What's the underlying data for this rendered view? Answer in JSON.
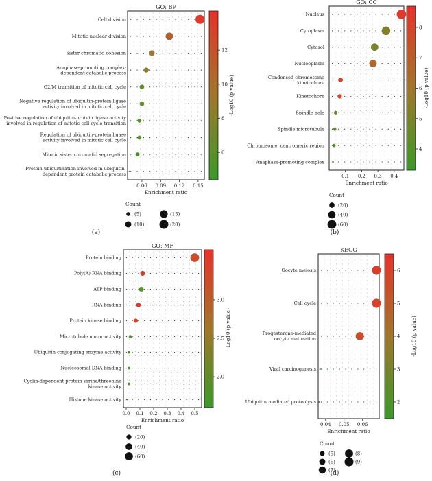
{
  "chart_data": [
    {
      "id": "a",
      "type": "scatter",
      "panel_label": "(a)",
      "title": "GO: BP",
      "xlabel": "Enrichment ratio",
      "xlim": [
        0.037,
        0.16
      ],
      "xticks": [
        0.06,
        0.09,
        0.12,
        0.15
      ],
      "xtick_labels": [
        "0.06",
        "0.09",
        "0.12",
        "0.15"
      ],
      "categories": [
        "Cell division",
        "Mitotic nuclear division",
        "Sister chromatid cohesion",
        "Anaphase-promoting complex-dependent catabolic process",
        "G2/M transition of mitotic cell cycle",
        "Negative regulation of ubiquitin-protein ligase activity involved in mitotic cell cycle",
        "Positive regulation of ubiquitin-protein ligase activity involved in regulation of mitotic cell cycle transition",
        "Regulation of ubiquitin-protein ligase activity involved in mitotic cell cycle",
        "Mitotic sister chromatid segregation",
        "Protein ubiquitination involved in ubiquitin-dependent protein catabolic process"
      ],
      "category_lines": [
        [
          "Cell division"
        ],
        [
          "Mitotic nuclear division"
        ],
        [
          "Sister chromatid cohesion"
        ],
        [
          "Anaphase-promoting complex-",
          "dependent catabolic process"
        ],
        [
          "G2/M transition of mitotic cell cycle"
        ],
        [
          "Negative regulation of ubiquitin-protein ligase",
          "activity involved in mitotic cell cycle"
        ],
        [
          "Positive regulation of ubiquitin-protein ligase activity",
          "involved in regulation of mitotic cell cycle transition"
        ],
        [
          "Regulation of ubiquitin-protein ligase",
          "activity involved in mitotic cell cycle"
        ],
        [
          "Mitotic sister chromatid segregation"
        ],
        [
          "Protein ubiquitination involved in ubiquitin-",
          "dependent protein catabolic process"
        ]
      ],
      "x": [
        0.153,
        0.104,
        0.076,
        0.067,
        0.06,
        0.06,
        0.056,
        0.056,
        0.053,
        0.04
      ],
      "count": [
        20,
        14,
        8,
        7,
        6,
        6,
        5,
        5,
        5,
        3
      ],
      "neg_log10_p": [
        13.8,
        11.0,
        9.6,
        8.7,
        6.3,
        6.2,
        5.8,
        5.9,
        5.2,
        4.8
      ],
      "colorbar": {
        "min": 4.4,
        "max": 14.3,
        "ticks": [
          6,
          8,
          10,
          12
        ],
        "tick_labels": [
          "6",
          "8",
          "10",
          "12"
        ],
        "label": "-Log10 (p value)"
      },
      "legend": {
        "title": "Count",
        "entries": [
          5,
          10,
          15,
          20
        ],
        "labels": [
          "(5)",
          "(10)",
          "(15)",
          "(20)"
        ]
      }
    },
    {
      "id": "b",
      "type": "scatter",
      "panel_label": "(b)",
      "title": "GO: CC",
      "xlabel": "Enrichment ratio",
      "xlim": [
        0.0,
        0.46
      ],
      "xticks": [
        0.1,
        0.2,
        0.3,
        0.4
      ],
      "xtick_labels": [
        "0.1",
        "0.2",
        "0.3",
        "0.4"
      ],
      "categories": [
        "Nucleus",
        "Cytoplasm",
        "Cytosol",
        "Nucleoplasm",
        "Condensed chromosome kinetochore",
        "Kinetochore",
        "Spindle pole",
        "Spindle microtubule",
        "Chromosome, centromeric region",
        "Anaphase-promoting complex"
      ],
      "category_lines": [
        [
          "Nucleus"
        ],
        [
          "Cytoplasm"
        ],
        [
          "Cytosol"
        ],
        [
          "Nucleoplasm"
        ],
        [
          "Condensed chromosome",
          "kinetochore"
        ],
        [
          "Kinetochore"
        ],
        [
          "Spindle pole"
        ],
        [
          "Spindle microtubule"
        ],
        [
          "Chromosome, centromeric region"
        ],
        [
          "Anaphase-promoting complex"
        ]
      ],
      "x": [
        0.445,
        0.35,
        0.28,
        0.27,
        0.07,
        0.065,
        0.04,
        0.035,
        0.03,
        0.025
      ],
      "count": [
        68,
        55,
        40,
        40,
        15,
        13,
        9,
        8,
        8,
        5
      ],
      "neg_log10_p": [
        8.4,
        5.2,
        5.0,
        6.6,
        8.0,
        7.8,
        4.2,
        4.0,
        3.9,
        3.5
      ],
      "colorbar": {
        "min": 3.3,
        "max": 8.7,
        "ticks": [
          4,
          5,
          6,
          7,
          8
        ],
        "tick_labels": [
          "4",
          "5",
          "6",
          "7",
          "8"
        ],
        "label": "-Log10 (p value)"
      },
      "legend": {
        "title": "Count",
        "entries": [
          20,
          40,
          60
        ],
        "labels": [
          "(20)",
          "(40)",
          "(60)"
        ]
      }
    },
    {
      "id": "c",
      "type": "scatter",
      "panel_label": "(c)",
      "title": "GO: MF",
      "xlabel": "Enrichment ratio",
      "xlim": [
        -0.02,
        0.55
      ],
      "xticks": [
        0.0,
        0.1,
        0.2,
        0.3,
        0.4,
        0.5
      ],
      "xtick_labels": [
        "0.0",
        "0.1",
        "0.2",
        "0.3",
        "0.4",
        "0.5"
      ],
      "categories": [
        "Protein binding",
        "Poly(A) RNA binding",
        "ATP binding",
        "RNA binding",
        "Protein kinase binding",
        "Microtubule motor activity",
        "Ubiquitin conjugating enzyme activity",
        "Nucleosomal DNA binding",
        "Cyclin-dependent protein serine/threonine kinase activity",
        "Histone kinase activity"
      ],
      "category_lines": [
        [
          "Protein binding"
        ],
        [
          "Poly(A) RNA binding"
        ],
        [
          "ATP binding"
        ],
        [
          "RNA binding"
        ],
        [
          "Protein kinase binding"
        ],
        [
          "Microtubule motor activity"
        ],
        [
          "Ubiquitin conjugating enzyme activity"
        ],
        [
          "Nucleosomal DNA binding"
        ],
        [
          "Cyclin-dependent protein serine/threonine",
          "kinase activity"
        ],
        [
          "Histone kinase activity"
        ]
      ],
      "x": [
        0.5,
        0.12,
        0.11,
        0.09,
        0.07,
        0.03,
        0.02,
        0.02,
        0.02,
        0.01
      ],
      "count": [
        70,
        18,
        18,
        15,
        13,
        7,
        6,
        6,
        6,
        4
      ],
      "neg_log10_p": [
        3.3,
        3.5,
        1.9,
        3.6,
        3.4,
        1.8,
        1.8,
        1.8,
        1.7,
        1.7
      ],
      "colorbar": {
        "min": 1.6,
        "max": 3.65,
        "ticks": [
          2.0,
          2.5,
          3.0
        ],
        "tick_labels": [
          "2.0",
          "2.5",
          "3.0"
        ],
        "label": "-Log10 (p value)"
      },
      "legend": {
        "title": "Count",
        "entries": [
          20,
          40,
          60
        ],
        "labels": [
          "(20)",
          "(40)",
          "(60)"
        ]
      }
    },
    {
      "id": "d",
      "type": "scatter",
      "panel_label": "(d)",
      "title": "KEGG",
      "xlabel": "Enrichment ratio",
      "xlim": [
        0.036,
        0.069
      ],
      "xticks": [
        0.04,
        0.05,
        0.06
      ],
      "xtick_labels": [
        "0.04",
        "0.05",
        "0.06"
      ],
      "categories": [
        "Oocyte meiosis",
        "Cell cycle",
        "Progesterone-mediated oocyte maturation",
        "Viral carcinogenesis",
        "Ubiquitin mediated proteolysis"
      ],
      "category_lines": [
        [
          "Oocyte meiosis"
        ],
        [
          "Cell cycle"
        ],
        [
          "Progesterone-mediated",
          "oocyte maturation"
        ],
        [
          "Viral carcinogenesis"
        ],
        [
          "Ubiquitin mediated proteolysis"
        ]
      ],
      "x": [
        0.0675,
        0.0675,
        0.0585,
        0.037,
        0.0365
      ],
      "count": [
        9,
        9,
        8,
        4,
        4
      ],
      "neg_log10_p": [
        6.1,
        6.0,
        5.6,
        2.3,
        2.0
      ],
      "colorbar": {
        "min": 1.5,
        "max": 6.5,
        "ticks": [
          2,
          3,
          4,
          5,
          6
        ],
        "tick_labels": [
          "2",
          "3",
          "4",
          "5",
          "6"
        ],
        "label": "-Log10 (p value)"
      },
      "legend": {
        "title": "Count",
        "entries": [
          5,
          6,
          7,
          8,
          9
        ],
        "labels": [
          "(5)",
          "(6)",
          "(7)",
          "(8)",
          "(9)"
        ]
      }
    }
  ],
  "colors": {
    "high": "#e8322a",
    "mid": "#a0772a",
    "low": "#3a9a2a",
    "grid_dot": "#333333",
    "frame": "#222222"
  }
}
